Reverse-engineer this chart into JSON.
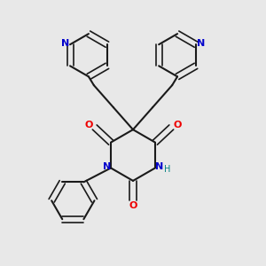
{
  "bg_color": "#e8e8e8",
  "bond_color": "#1a1a1a",
  "N_color": "#0000cc",
  "O_color": "#ee0000",
  "H_color": "#008080",
  "figsize": [
    3.0,
    3.0
  ],
  "dpi": 100,
  "xlim": [
    0,
    1
  ],
  "ylim": [
    0,
    1
  ]
}
